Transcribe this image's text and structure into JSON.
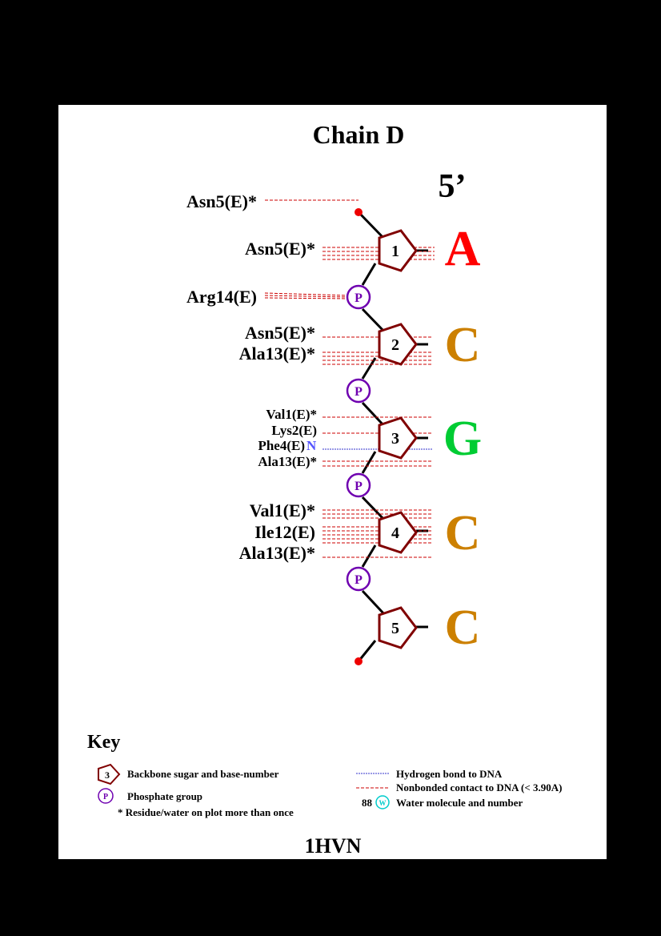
{
  "title": "Chain D",
  "strand_end": "5’",
  "footer_id": "1HVN",
  "colors": {
    "A": "#ff0000",
    "C": "#cc8000",
    "G": "#00cc33",
    "sugar": "#800000",
    "phosphate": "#6f00b0",
    "nonbonded": "#cc0000",
    "hbond": "#3333cc",
    "water": "#00cccc",
    "hbond_atom": "#5555ff"
  },
  "nucleotides": [
    {
      "number": "1",
      "base": "A"
    },
    {
      "number": "2",
      "base": "C"
    },
    {
      "number": "3",
      "base": "G"
    },
    {
      "number": "4",
      "base": "C"
    },
    {
      "number": "5",
      "base": "C"
    }
  ],
  "phosphate_label": "P",
  "contacts": [
    {
      "residue": "Asn5(E)*",
      "target": "5' terminal phosphate",
      "type": "nonbonded"
    },
    {
      "residue": "Asn5(E)*",
      "target": "sugar 1",
      "type": "nonbonded"
    },
    {
      "residue": "Arg14(E)",
      "target": "phosphate 1-2",
      "type": "nonbonded"
    },
    {
      "residue": "Asn5(E)*",
      "target": "sugar 2",
      "type": "nonbonded"
    },
    {
      "residue": "Ala13(E)*",
      "target": "sugar 2",
      "type": "nonbonded"
    },
    {
      "residue": "Val1(E)*",
      "target": "sugar 3",
      "type": "nonbonded"
    },
    {
      "residue": "Lys2(E)",
      "target": "sugar 3",
      "type": "nonbonded"
    },
    {
      "residue": "Phe4(E)",
      "atom": "N",
      "target": "base 3",
      "type": "hbond"
    },
    {
      "residue": "Ala13(E)*",
      "target": "sugar 3",
      "type": "nonbonded"
    },
    {
      "residue": "Val1(E)*",
      "target": "sugar 4",
      "type": "nonbonded"
    },
    {
      "residue": "Ile12(E)",
      "target": "sugar 4",
      "type": "nonbonded"
    },
    {
      "residue": "Ala13(E)*",
      "target": "sugar 4",
      "type": "nonbonded"
    }
  ],
  "key": {
    "heading": "Key",
    "sugar_sample": "3",
    "sugar_text": "Backbone sugar and base-number",
    "phosphate_sample": "P",
    "phosphate_text": "Phosphate group",
    "multi_text": "* Residue/water on plot more than once",
    "hbond_text": "Hydrogen bond to DNA",
    "nonbonded_text": "Nonbonded contact to DNA (< 3.90A)",
    "water_number": "88",
    "water_sample": "W",
    "water_text": "Water molecule and number"
  }
}
